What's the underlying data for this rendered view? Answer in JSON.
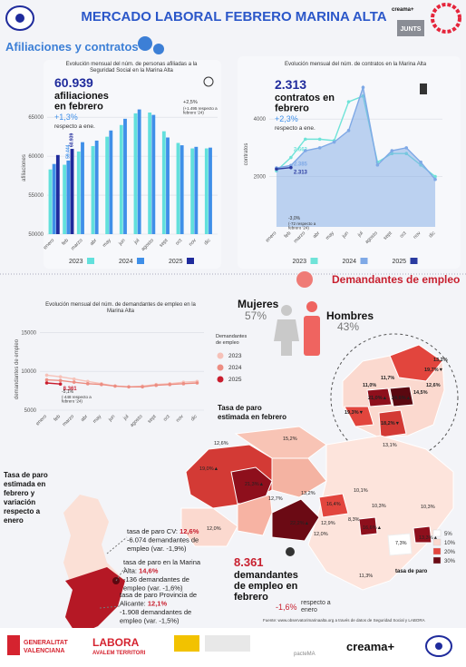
{
  "header": {
    "title": "MERCADO LABORAL FEBRERO MARINA ALTA",
    "logo_right": "creama+",
    "logo_badge": "JUNTS"
  },
  "section_1": "Afiliaciones y contratos",
  "chart_data": [
    {
      "type": "bar",
      "title": "Evolución mensual del núm. de personas afiliadas a la Seguridad Social en la Marina Alta",
      "ylabel": "afiliaciones",
      "categories": [
        "enero",
        "feb",
        "marzo",
        "abr",
        "may",
        "jun",
        "jul",
        "agosto",
        "sept",
        "oct",
        "nov",
        "dic"
      ],
      "series": [
        {
          "name": "2023",
          "color": "#62e0dc",
          "values": [
            58300,
            58900,
            60600,
            61300,
            62500,
            64000,
            65500,
            65600,
            63200,
            61700,
            61000,
            61000
          ]
        },
        {
          "name": "2024",
          "color": "#3f8fe8",
          "values": [
            59000,
            59444,
            61800,
            62000,
            63300,
            64800,
            66000,
            65300,
            62400,
            61400,
            61200,
            61100
          ],
          "value_labels": [
            null,
            "59.444",
            null,
            null,
            null,
            null,
            null,
            null,
            null,
            null,
            null,
            null
          ]
        },
        {
          "name": "2025",
          "color": "#1f2b9c",
          "values": [
            60150,
            60939,
            null,
            null,
            null,
            null,
            null,
            null,
            null,
            null,
            null,
            null
          ],
          "value_labels": [
            null,
            "60.939",
            null,
            null,
            null,
            null,
            null,
            null,
            null,
            null,
            null,
            null
          ]
        }
      ],
      "ylim": [
        50000,
        67000
      ],
      "yticks": [
        50000,
        55000,
        60000,
        65000
      ],
      "grid": true,
      "legend": "bottom",
      "annotations": [
        "60.939",
        "afiliaciones en febrero",
        "+1,3%",
        "respecto a ene.",
        "+2,5%",
        "(+1.495 respecto a febrero '24)"
      ]
    },
    {
      "type": "line",
      "title": "Evolución mensual del núm. de contratos en la Marina Alta",
      "ylabel": "contratos",
      "categories": [
        "enero",
        "feb",
        "marzo",
        "abr",
        "may",
        "jun",
        "jul",
        "agosto",
        "sept",
        "oct",
        "nov",
        "dic"
      ],
      "series": [
        {
          "name": "2023",
          "color": "#6fe3d8",
          "values": [
            2200,
            2663,
            3300,
            3300,
            3250,
            4600,
            4800,
            2500,
            2800,
            2800,
            2400,
            2000
          ],
          "value_labels": [
            null,
            "2.663",
            null,
            null,
            null,
            null,
            null,
            null,
            null,
            null,
            null,
            null
          ]
        },
        {
          "name": "2024",
          "color": "#7fa9e6",
          "area": true,
          "values": [
            2300,
            2385,
            2900,
            3000,
            3200,
            3600,
            5100,
            2400,
            2900,
            3000,
            2500,
            1900
          ],
          "value_labels": [
            null,
            "2.385",
            null,
            null,
            null,
            null,
            null,
            null,
            null,
            null,
            null,
            null
          ]
        },
        {
          "name": "2025",
          "color": "#2a3ba0",
          "values": [
            2261,
            2313,
            null,
            null,
            null,
            null,
            null,
            null,
            null,
            null,
            null,
            null
          ],
          "value_labels": [
            null,
            "2.313",
            null,
            null,
            null,
            null,
            null,
            null,
            null,
            null,
            null,
            null
          ]
        }
      ],
      "ylim": [
        250,
        5300
      ],
      "yticks": [
        2000,
        4000
      ],
      "grid": true,
      "legend": "bottom",
      "annotations": [
        "2.313",
        "contratos en febrero",
        "+2,3%",
        "respecto a ene.",
        "-3,0%",
        "(-72 respecto a febrero '24)"
      ]
    },
    {
      "type": "line",
      "title": "Evolución mensual del núm. de demandantes de empleo en la Marina Alta",
      "ylabel": "demandantes de empleo",
      "categories": [
        "enero",
        "feb",
        "marzo",
        "abr",
        "may",
        "jun",
        "jul",
        "agosto",
        "sept",
        "oct",
        "nov",
        "dic"
      ],
      "series": [
        {
          "name": "2023",
          "color": "#f6c1b8",
          "values": [
            9500,
            9300,
            9000,
            8700,
            8400,
            8100,
            8000,
            8100,
            8300,
            8400,
            8600,
            8700
          ]
        },
        {
          "name": "2024",
          "color": "#ec8d82",
          "values": [
            8900,
            8809,
            8600,
            8400,
            8300,
            8100,
            8000,
            8000,
            8200,
            8300,
            8400,
            8500
          ]
        },
        {
          "name": "2025",
          "color": "#c91d2e",
          "values": [
            8500,
            8361,
            null,
            null,
            null,
            null,
            null,
            null,
            null,
            null,
            null,
            null
          ],
          "value_labels": [
            null,
            "8.361",
            null,
            null,
            null,
            null,
            null,
            null,
            null,
            null,
            null,
            null
          ]
        }
      ],
      "ylim": [
        5000,
        15500
      ],
      "yticks": [
        5000,
        10000,
        15000
      ],
      "grid": true,
      "legend": "right",
      "legend_title": "Demandantes de empleo",
      "annotations": [
        "-5,1%",
        "(-448 respecto a febrero '24)"
      ]
    }
  ],
  "section_2": "Demandantes de empleo",
  "gender": {
    "women_label": "Mujeres",
    "women_value": "57%",
    "men_label": "Hombres",
    "men_value": "43%"
  },
  "map": {
    "title": "Tasa de paro estimada en febrero",
    "labels": [
      "19,0%▲",
      "21,3%▲",
      "15,2%",
      "13,1%",
      "12,7%",
      "13,2%",
      "16,4%",
      "12,9%",
      "22,2%▲",
      "12,0%",
      "10,1%",
      "10,3%",
      "10,3%",
      "8,3%",
      "16,6%▲",
      "13,3%▲",
      "7,3%",
      "12,0%",
      "11,3%",
      "12,6%"
    ],
    "inset_labels": [
      "19,7%▼",
      "13,2%",
      "11,7%",
      "11,0%",
      "21,0%▲",
      "24,6%▲",
      "14,5%",
      "12,6%",
      "19,3%▼",
      "18,2%▼"
    ],
    "legend_title": "tasa de paro",
    "legend": [
      "5%",
      "10%",
      "20%",
      "30%"
    ]
  },
  "region": {
    "title": "Tasa de paro estimada en febrero y variación respecto a enero",
    "stats": [
      {
        "label": [
          "tasa de paro CV:"
        ],
        "value": "12,6%",
        "lines": [
          "-6.074 demandantes de",
          "empleo (var. -1,9%)"
        ]
      },
      {
        "label": [
          "tasa de paro en la Marina",
          "Alta:"
        ],
        "value": "14,6%",
        "lines": [
          "-136 demandantes de",
          "empleo (var. -1,6%)"
        ]
      },
      {
        "label": [
          "tasa de paro Provincia de",
          "Alicante:"
        ],
        "value": "12,1%",
        "lines": [
          "-1.908 demandantes de",
          "empleo (var. -1,5%)"
        ]
      }
    ]
  },
  "total": {
    "value": "8.361",
    "label": "demandantes de empleo en febrero",
    "change": "-1,6%",
    "change_label": "respecto a enero"
  },
  "source": "Fuente: www.observatorimarinaalta.org a través de datos de Seguridad Social y LABORA",
  "footer": {
    "gva_1": "GENERALITAT",
    "gva_2": "VALENCIANA",
    "labora": "LABORA",
    "labora_sub": "AVALEM TERRITORI",
    "pacte": "pacteMA",
    "creama": "creama+"
  }
}
